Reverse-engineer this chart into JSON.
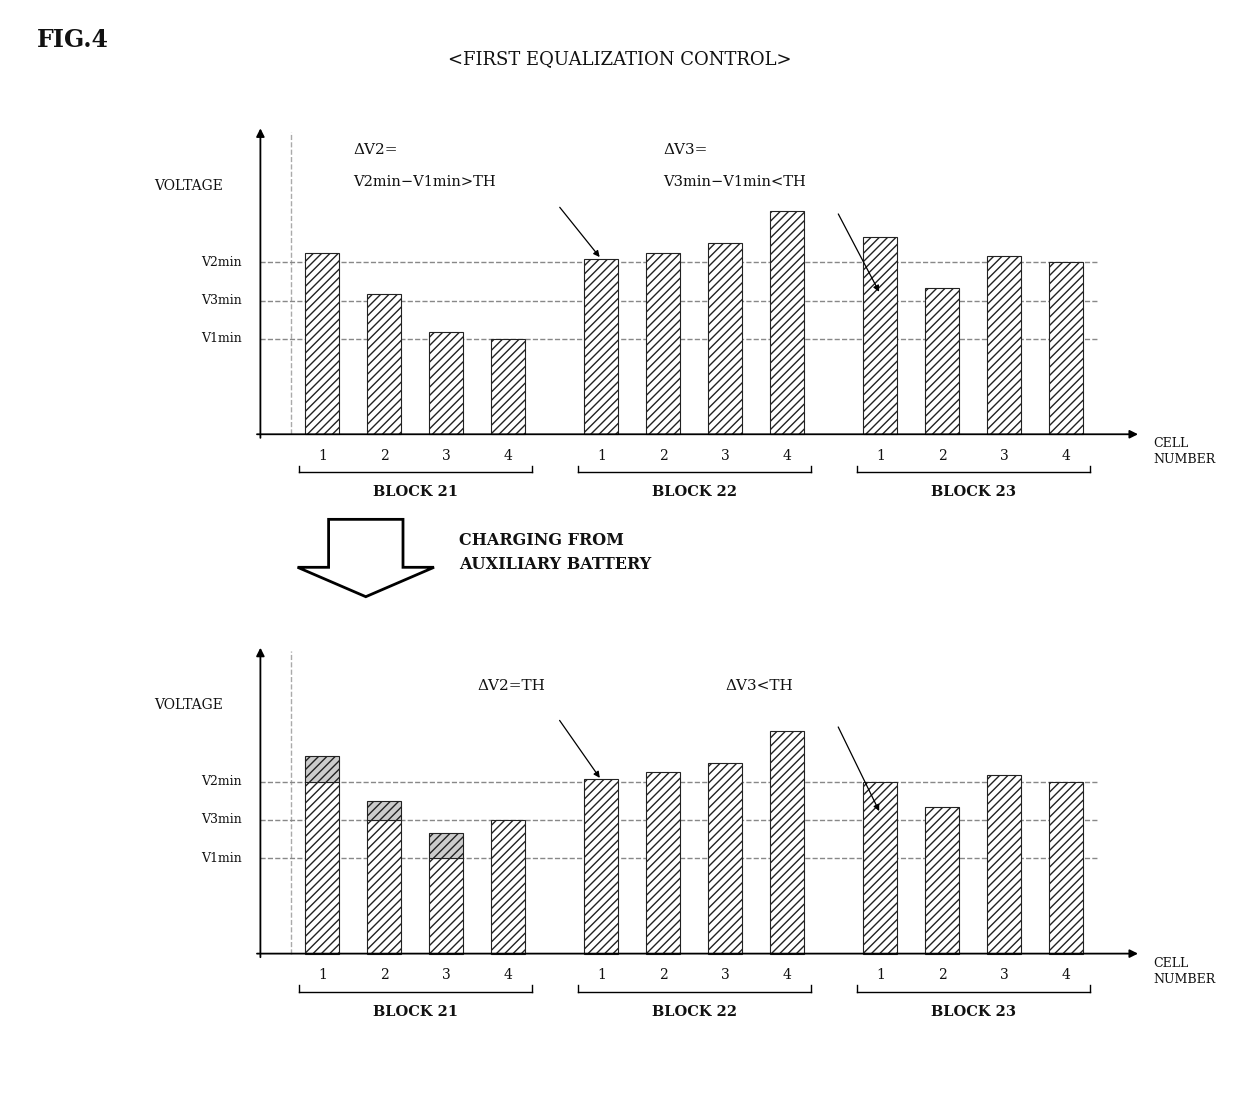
{
  "title": "<FIRST EQUALIZATION CONTROL>",
  "fig_label": "FIG.4",
  "background_color": "#ffffff",
  "top_chart": {
    "v1min": 0.3,
    "v3min": 0.42,
    "v2min": 0.54,
    "ymax": 1.0,
    "bars_b21": [
      0.57,
      0.44,
      0.32,
      0.3
    ],
    "bars_b22": [
      0.55,
      0.57,
      0.6,
      0.7
    ],
    "bars_b23": [
      0.62,
      0.46,
      0.56,
      0.54
    ]
  },
  "bottom_chart": {
    "v1min": 0.3,
    "v3min": 0.42,
    "v2min": 0.54,
    "ymax": 1.0,
    "bars_b21": [
      0.54,
      0.42,
      0.3,
      0.42
    ],
    "bars_b22": [
      0.55,
      0.57,
      0.6,
      0.7
    ],
    "bars_b23": [
      0.54,
      0.46,
      0.56,
      0.54
    ],
    "tops_b21": [
      0.08,
      0.06,
      0.08,
      0.0
    ],
    "tops_b22": [
      0.0,
      0.0,
      0.0,
      0.0
    ],
    "tops_b23": [
      0.0,
      0.0,
      0.0,
      0.0
    ]
  },
  "blocks": [
    "BLOCK 21",
    "BLOCK 22",
    "BLOCK 23"
  ],
  "bar_width": 0.55,
  "hatch": "////",
  "top_hatch": "////",
  "bar_fc": "#ffffff",
  "bar_ec": "#222222",
  "top_fc": "#cccccc",
  "top_ec": "#222222",
  "text_color": "#111111",
  "line_color": "#888888"
}
